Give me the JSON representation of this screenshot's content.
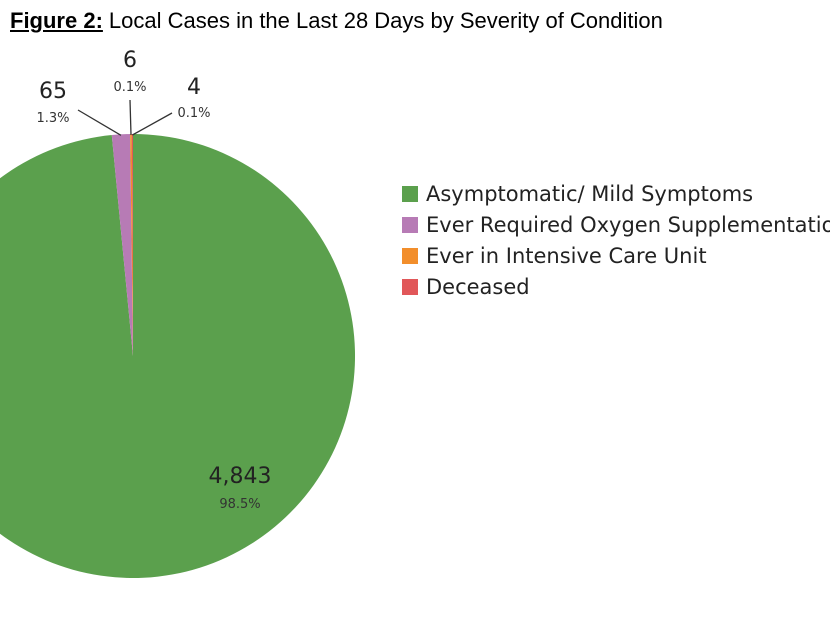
{
  "figure": {
    "number_label": "Figure 2:",
    "title": "Local Cases in the Last 28 Days by Severity of Condition"
  },
  "chart_data": {
    "type": "pie",
    "title": "Local Cases in the Last 28 Days by Severity of Condition",
    "legend_position": "right",
    "slices": [
      {
        "name": "Asymptomatic/ Mild Symptoms",
        "value": 4843,
        "value_label": "4,843",
        "percent_label": "98.5%",
        "color": "#5BA04D"
      },
      {
        "name": "Ever Required Oxygen Supplementation",
        "value": 65,
        "value_label": "65",
        "percent_label": "1.3%",
        "color": "#B77BB5"
      },
      {
        "name": "Ever in Intensive Care Unit",
        "value": 6,
        "value_label": "6",
        "percent_label": "0.1%",
        "color": "#F28E2B"
      },
      {
        "name": "Deceased",
        "value": 4,
        "value_label": "4",
        "percent_label": "0.1%",
        "color": "#E15759"
      }
    ]
  }
}
